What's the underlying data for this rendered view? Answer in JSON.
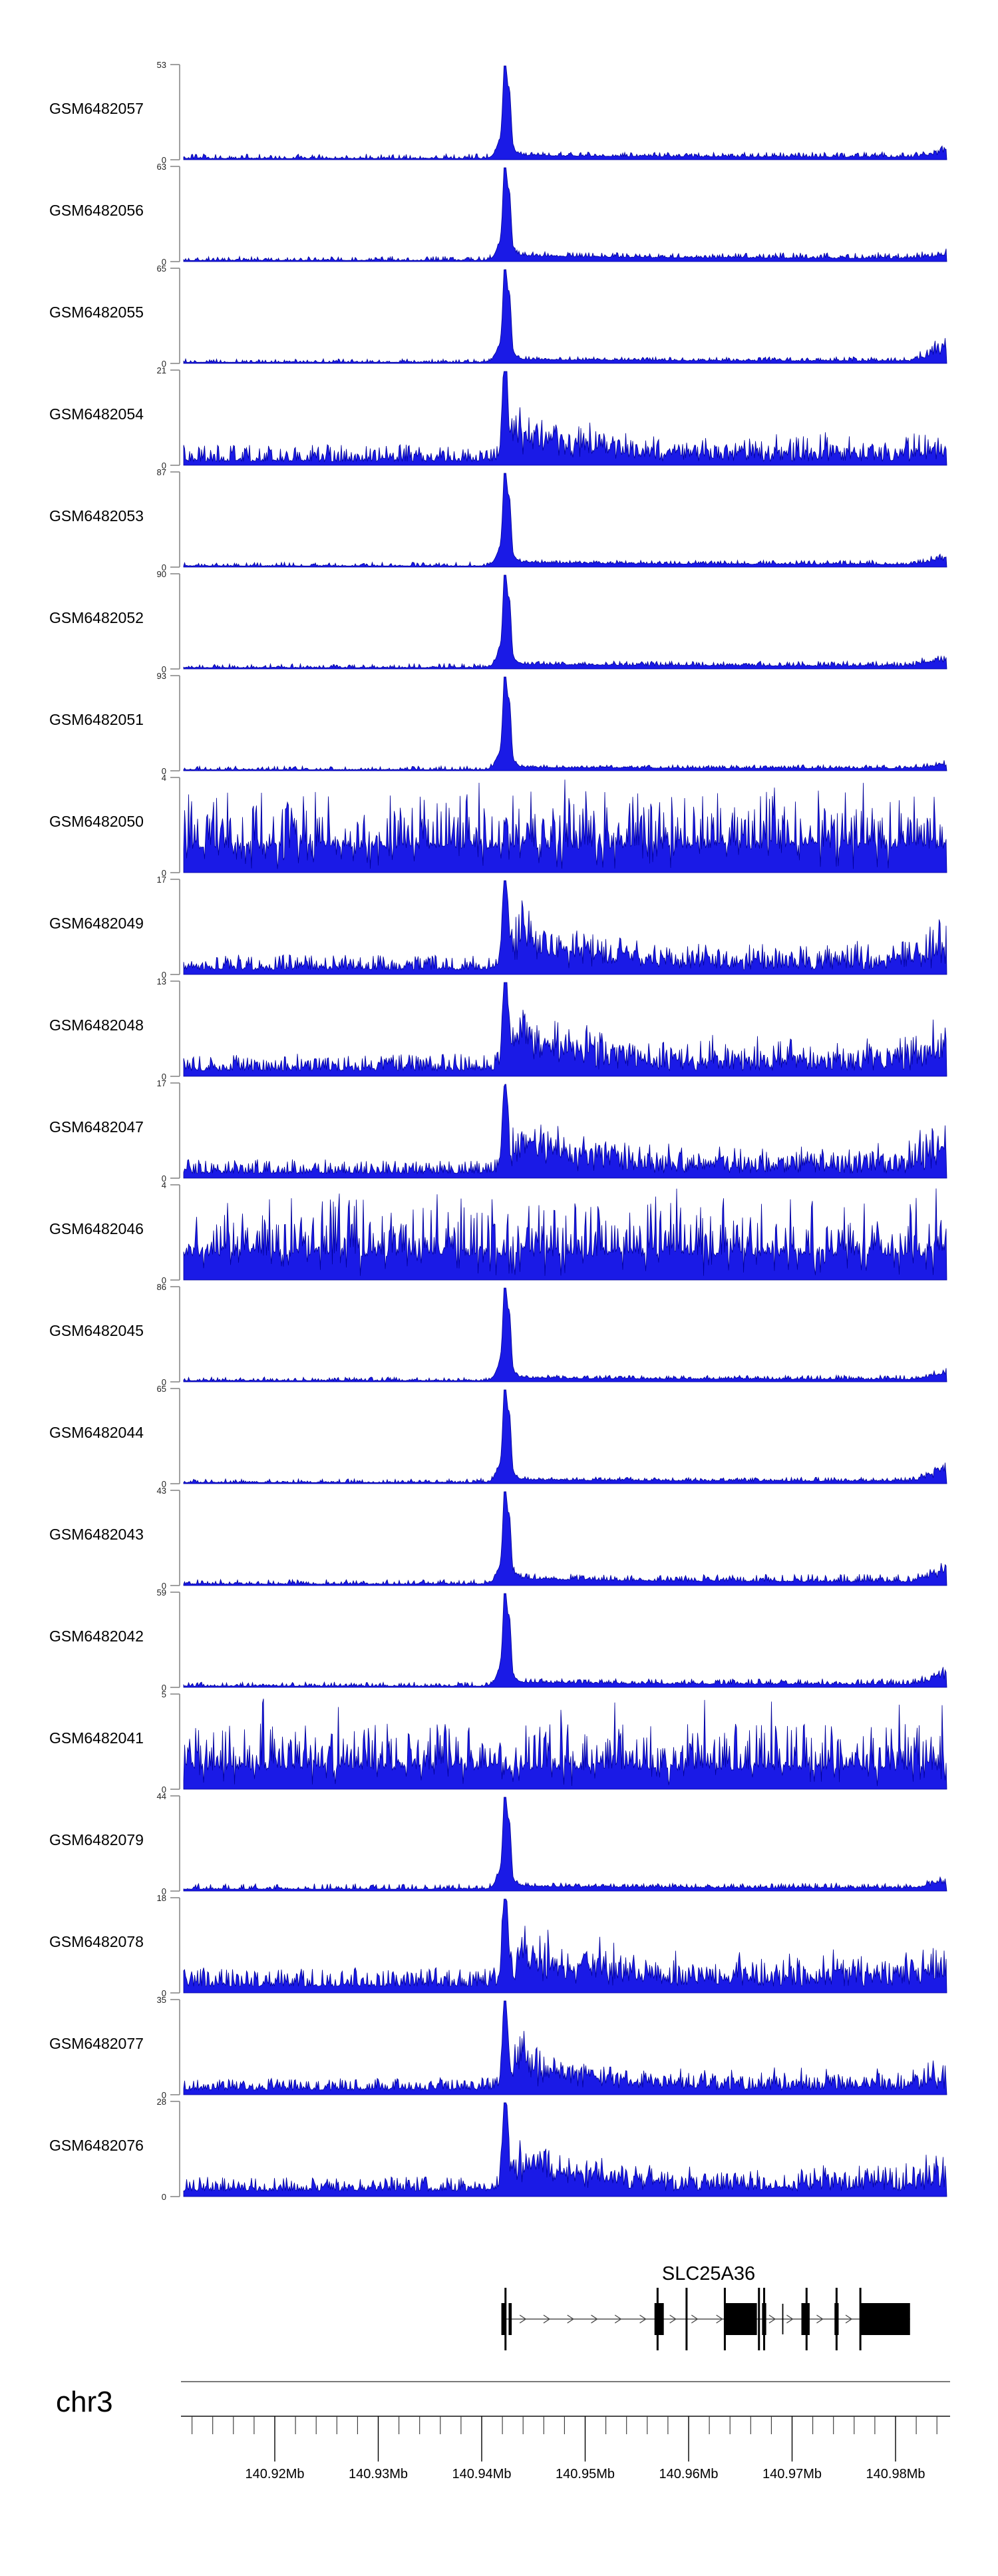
{
  "figure_title": "",
  "chart_data": {
    "type": "area",
    "description": "Genome browser coverage tracks (read-depth histograms) over chr3 around the SLC25A36 locus",
    "region": {
      "chromosome": "chr3",
      "start_mb": 140.911,
      "end_mb": 140.985,
      "unit": "Mb"
    },
    "colors": {
      "data_fill": "#1a1ae6",
      "data_stroke": "#000099",
      "bracket": "#8f8f8f",
      "axis_line": "#4d4d4d",
      "tick": "#222222",
      "text": "#000000",
      "gene": "#000000"
    },
    "tracks": [
      {
        "label": "GSM6482057",
        "ymin": 0,
        "ymax": 53,
        "profile": {
          "kind": "peak",
          "seed": 101,
          "left_base": 0.013,
          "left_noise": 0.05,
          "tail": 0.035,
          "tail_noise": 0.06,
          "right_bump": 0.1
        }
      },
      {
        "label": "GSM6482056",
        "ymin": 0,
        "ymax": 63,
        "profile": {
          "kind": "peak",
          "seed": 102,
          "left_base": 0.012,
          "left_noise": 0.045,
          "tail": 0.05,
          "tail_noise": 0.07,
          "right_bump": 0.06
        }
      },
      {
        "label": "GSM6482055",
        "ymin": 0,
        "ymax": 65,
        "profile": {
          "kind": "peak",
          "seed": 103,
          "left_base": 0.012,
          "left_noise": 0.04,
          "tail": 0.03,
          "tail_noise": 0.05,
          "right_bump": 0.27
        }
      },
      {
        "label": "GSM6482054",
        "ymin": 0,
        "ymax": 21,
        "profile": {
          "kind": "peak_noisy",
          "seed": 104,
          "left_base": 0.04,
          "left_noise": 0.18,
          "tail_noise": 0.16,
          "right_bump": 0.1
        }
      },
      {
        "label": "GSM6482053",
        "ymin": 0,
        "ymax": 87,
        "profile": {
          "kind": "peak",
          "seed": 105,
          "left_base": 0.012,
          "left_noise": 0.04,
          "tail": 0.035,
          "tail_noise": 0.05,
          "right_bump": 0.1
        }
      },
      {
        "label": "GSM6482052",
        "ymin": 0,
        "ymax": 90,
        "profile": {
          "kind": "peak",
          "seed": 106,
          "left_base": 0.013,
          "left_noise": 0.045,
          "tail": 0.04,
          "tail_noise": 0.06,
          "right_bump": 0.13
        }
      },
      {
        "label": "GSM6482051",
        "ymin": 0,
        "ymax": 93,
        "profile": {
          "kind": "peak",
          "seed": 107,
          "left_base": 0.011,
          "left_noise": 0.04,
          "tail": 0.025,
          "tail_noise": 0.045,
          "right_bump": 0.07
        }
      },
      {
        "label": "GSM6482050",
        "ymin": 0,
        "ymax": 4,
        "profile": {
          "kind": "dense",
          "seed": 108,
          "levels": 4
        }
      },
      {
        "label": "GSM6482049",
        "ymin": 0,
        "ymax": 17,
        "profile": {
          "kind": "peak_noisy",
          "seed": 109,
          "left_base": 0.05,
          "left_noise": 0.16,
          "tail_noise": 0.22,
          "right_bump": 0.45
        }
      },
      {
        "label": "GSM6482048",
        "ymin": 0,
        "ymax": 13,
        "profile": {
          "kind": "peak_noisy",
          "seed": 110,
          "left_base": 0.06,
          "left_noise": 0.18,
          "tail_noise": 0.26,
          "right_bump": 0.35
        }
      },
      {
        "label": "GSM6482047",
        "ymin": 0,
        "ymax": 17,
        "profile": {
          "kind": "peak_noisy",
          "seed": 111,
          "left_base": 0.05,
          "left_noise": 0.15,
          "tail_noise": 0.24,
          "right_bump": 0.4
        }
      },
      {
        "label": "GSM6482046",
        "ymin": 0,
        "ymax": 4,
        "profile": {
          "kind": "dense",
          "seed": 112,
          "levels": 4
        }
      },
      {
        "label": "GSM6482045",
        "ymin": 0,
        "ymax": 86,
        "profile": {
          "kind": "peak",
          "seed": 113,
          "left_base": 0.012,
          "left_noise": 0.04,
          "tail": 0.03,
          "tail_noise": 0.05,
          "right_bump": 0.1
        }
      },
      {
        "label": "GSM6482044",
        "ymin": 0,
        "ymax": 65,
        "profile": {
          "kind": "peak",
          "seed": 114,
          "left_base": 0.012,
          "left_noise": 0.04,
          "tail": 0.03,
          "tail_noise": 0.05,
          "right_bump": 0.22
        }
      },
      {
        "label": "GSM6482043",
        "ymin": 0,
        "ymax": 43,
        "profile": {
          "kind": "peak",
          "seed": 115,
          "left_base": 0.015,
          "left_noise": 0.05,
          "tail": 0.06,
          "tail_noise": 0.09,
          "right_bump": 0.22
        }
      },
      {
        "label": "GSM6482042",
        "ymin": 0,
        "ymax": 59,
        "profile": {
          "kind": "peak",
          "seed": 116,
          "left_base": 0.013,
          "left_noise": 0.045,
          "tail": 0.04,
          "tail_noise": 0.07,
          "right_bump": 0.16
        }
      },
      {
        "label": "GSM6482041",
        "ymin": 0,
        "ymax": 5,
        "profile": {
          "kind": "dense",
          "seed": 117,
          "levels": 5
        }
      },
      {
        "label": "GSM6482079",
        "ymin": 0,
        "ymax": 44,
        "profile": {
          "kind": "peak",
          "seed": 118,
          "left_base": 0.02,
          "left_noise": 0.06,
          "tail": 0.04,
          "tail_noise": 0.06,
          "right_bump": 0.1
        }
      },
      {
        "label": "GSM6482078",
        "ymin": 0,
        "ymax": 18,
        "profile": {
          "kind": "peak_noisy",
          "seed": 119,
          "left_base": 0.07,
          "left_noise": 0.2,
          "tail_noise": 0.22,
          "right_bump": 0.3
        }
      },
      {
        "label": "GSM6482077",
        "ymin": 0,
        "ymax": 35,
        "profile": {
          "kind": "peak_noisy",
          "seed": 120,
          "left_base": 0.05,
          "left_noise": 0.13,
          "tail_noise": 0.14,
          "right_bump": 0.18
        }
      },
      {
        "label": "GSM6482076",
        "ymin": 0,
        "ymax": 28,
        "profile": {
          "kind": "peak_noisy",
          "seed": 121,
          "left_base": 0.06,
          "left_noise": 0.15,
          "tail_noise": 0.18,
          "right_bump": 0.28
        }
      }
    ],
    "gene_track": {
      "gene_name": "SLC25A36",
      "strand": "right",
      "label_center_mb": 140.9619,
      "line_start_mb": 140.9419,
      "line_end_mb": 140.9814,
      "exon_lines_mb": [
        140.9423,
        140.957,
        140.9598,
        140.9635,
        140.9668,
        140.9673,
        140.9714,
        140.9743,
        140.9766
      ],
      "short_lines_mb": [
        140.9691
      ],
      "boxes_mb": [
        [
          140.9419,
          140.9423
        ],
        [
          140.9426,
          140.9429
        ],
        [
          140.9567,
          140.9576
        ],
        [
          140.9635,
          140.9666
        ],
        [
          140.9671,
          140.9675
        ],
        [
          140.9709,
          140.9717
        ],
        [
          140.9741,
          140.9745
        ],
        [
          140.9766,
          140.9814
        ]
      ],
      "arrows_mb": [
        140.944,
        140.9463,
        140.9486,
        140.9509,
        140.9532,
        140.9556,
        140.9585,
        140.9606,
        140.963,
        140.9681,
        140.9698,
        140.9727,
        140.9755
      ]
    },
    "axis": {
      "chromosome_label": "chr3",
      "unit_suffix": "Mb",
      "major_ticks_mb": [
        140.92,
        140.93,
        140.94,
        140.95,
        140.96,
        140.97,
        140.98
      ],
      "major_tick_labels": [
        "140.92Mb",
        "140.93Mb",
        "140.94Mb",
        "140.95Mb",
        "140.96Mb",
        "140.97Mb",
        "140.98Mb"
      ],
      "minor_tick_start_mb": 140.912,
      "minor_tick_end_mb": 140.984,
      "minor_step_mb": 0.002
    }
  }
}
